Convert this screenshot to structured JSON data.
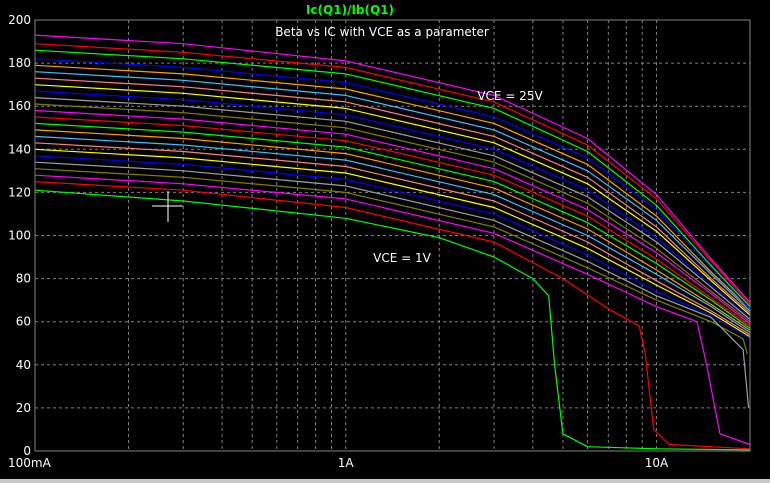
{
  "chart_data": {
    "type": "line",
    "trace_label": "Ic(Q1)/Ib(Q1)",
    "annotations": {
      "title": "Beta vs IC with VCE as a parameter",
      "top_curve": "VCE = 25V",
      "bottom_curve": "VCE = 1V"
    },
    "x_scale": "log",
    "xlim": [
      0.1,
      20
    ],
    "ylim": [
      0,
      200
    ],
    "x_ticks": [
      {
        "value": 0.1,
        "label": "100mA"
      },
      {
        "value": 1,
        "label": "1A"
      },
      {
        "value": 10,
        "label": "10A"
      }
    ],
    "y_ticks": [
      0,
      20,
      40,
      60,
      80,
      100,
      120,
      140,
      160,
      180,
      200
    ],
    "grid": true,
    "colors": {
      "background": "#000000",
      "axes": "#808080",
      "grid": "#808080",
      "text": "#ffffff",
      "trace_label": "#00ff00",
      "series_palette": [
        "#00ff00",
        "#ff0000",
        "#ff00ff",
        "#808000",
        "#a0a0a0",
        "#0000ff",
        "#ffff00",
        "#ff8080",
        "#40c0ff",
        "#ffa000"
      ]
    },
    "series": [
      {
        "color": "#00ff00",
        "values": [
          [
            0.1,
            121
          ],
          [
            0.3,
            116
          ],
          [
            1,
            108
          ],
          [
            2,
            99
          ],
          [
            3,
            90
          ],
          [
            4,
            80
          ],
          [
            4.5,
            72
          ],
          [
            4.7,
            40
          ],
          [
            5,
            8
          ],
          [
            6,
            2
          ],
          [
            10,
            1
          ],
          [
            20,
            0.5
          ]
        ]
      },
      {
        "color": "#ff0000",
        "values": [
          [
            0.1,
            125
          ],
          [
            0.3,
            121
          ],
          [
            1,
            113
          ],
          [
            3,
            97
          ],
          [
            5,
            80
          ],
          [
            7,
            66
          ],
          [
            8.8,
            58
          ],
          [
            9.2,
            45
          ],
          [
            9.8,
            10
          ],
          [
            11,
            3
          ],
          [
            20,
            1
          ]
        ]
      },
      {
        "color": "#ff00ff",
        "values": [
          [
            0.1,
            128
          ],
          [
            0.3,
            124
          ],
          [
            1,
            117
          ],
          [
            3,
            101
          ],
          [
            6,
            82
          ],
          [
            10,
            67
          ],
          [
            13.5,
            60
          ],
          [
            14.5,
            40
          ],
          [
            16,
            8
          ],
          [
            20,
            3
          ]
        ]
      },
      {
        "color": "#808000",
        "values": [
          [
            0.1,
            131
          ],
          [
            0.3,
            127
          ],
          [
            1,
            120
          ],
          [
            3,
            104
          ],
          [
            6,
            85
          ],
          [
            10,
            70
          ],
          [
            15,
            60
          ],
          [
            19,
            52
          ],
          [
            19.6,
            45
          ]
        ]
      },
      {
        "color": "#a0a0a0",
        "values": [
          [
            0.1,
            134
          ],
          [
            0.3,
            130
          ],
          [
            1,
            123
          ],
          [
            3,
            107
          ],
          [
            6,
            88
          ],
          [
            10,
            72
          ],
          [
            15,
            62
          ],
          [
            19,
            47
          ],
          [
            19.8,
            20
          ]
        ]
      },
      {
        "color": "#0000ff",
        "values": [
          [
            0.1,
            137
          ],
          [
            0.3,
            133
          ],
          [
            1,
            126
          ],
          [
            3,
            110
          ],
          [
            6,
            91
          ],
          [
            10,
            74
          ],
          [
            15,
            63
          ],
          [
            20,
            52
          ]
        ]
      },
      {
        "color": "#ffff00",
        "values": [
          [
            0.1,
            140
          ],
          [
            0.3,
            136
          ],
          [
            1,
            129
          ],
          [
            3,
            113
          ],
          [
            6,
            94
          ],
          [
            10,
            77
          ],
          [
            15,
            64
          ],
          [
            20,
            53
          ]
        ]
      },
      {
        "color": "#ff8080",
        "values": [
          [
            0.1,
            143
          ],
          [
            0.3,
            139
          ],
          [
            1,
            132
          ],
          [
            3,
            116
          ],
          [
            6,
            97
          ],
          [
            10,
            79
          ],
          [
            15,
            65
          ],
          [
            20,
            54
          ]
        ]
      },
      {
        "color": "#40c0ff",
        "values": [
          [
            0.1,
            146
          ],
          [
            0.3,
            142
          ],
          [
            1,
            135
          ],
          [
            3,
            119
          ],
          [
            6,
            100
          ],
          [
            10,
            82
          ],
          [
            15,
            67
          ],
          [
            20,
            55
          ]
        ]
      },
      {
        "color": "#ffa000",
        "values": [
          [
            0.1,
            149
          ],
          [
            0.3,
            145
          ],
          [
            1,
            138
          ],
          [
            3,
            122
          ],
          [
            6,
            103
          ],
          [
            10,
            84
          ],
          [
            15,
            68
          ],
          [
            20,
            56
          ]
        ]
      },
      {
        "color": "#00ff00",
        "values": [
          [
            0.1,
            152
          ],
          [
            0.3,
            148
          ],
          [
            1,
            141
          ],
          [
            3,
            125
          ],
          [
            6,
            106
          ],
          [
            10,
            87
          ],
          [
            15,
            70
          ],
          [
            20,
            57
          ]
        ]
      },
      {
        "color": "#ff0000",
        "values": [
          [
            0.1,
            155
          ],
          [
            0.3,
            151
          ],
          [
            1,
            144
          ],
          [
            3,
            128
          ],
          [
            6,
            109
          ],
          [
            10,
            89
          ],
          [
            15,
            71
          ],
          [
            20,
            58
          ]
        ]
      },
      {
        "color": "#ff00ff",
        "values": [
          [
            0.1,
            158
          ],
          [
            0.3,
            154
          ],
          [
            1,
            147
          ],
          [
            3,
            131
          ],
          [
            6,
            112
          ],
          [
            10,
            92
          ],
          [
            15,
            73
          ],
          [
            20,
            59
          ]
        ]
      },
      {
        "color": "#808000",
        "values": [
          [
            0.1,
            161
          ],
          [
            0.3,
            157
          ],
          [
            1,
            150
          ],
          [
            3,
            134
          ],
          [
            6,
            115
          ],
          [
            10,
            94
          ],
          [
            15,
            74
          ],
          [
            20,
            60
          ]
        ]
      },
      {
        "color": "#a0a0a0",
        "values": [
          [
            0.1,
            164
          ],
          [
            0.3,
            160
          ],
          [
            1,
            153
          ],
          [
            3,
            137
          ],
          [
            6,
            118
          ],
          [
            10,
            97
          ],
          [
            15,
            76
          ],
          [
            20,
            61
          ]
        ]
      },
      {
        "color": "#0000ff",
        "values": [
          [
            0.1,
            167
          ],
          [
            0.3,
            163
          ],
          [
            1,
            156
          ],
          [
            3,
            140
          ],
          [
            6,
            121
          ],
          [
            10,
            99
          ],
          [
            15,
            77
          ],
          [
            20,
            62
          ]
        ]
      },
      {
        "color": "#ffff00",
        "values": [
          [
            0.1,
            170
          ],
          [
            0.3,
            166
          ],
          [
            1,
            159
          ],
          [
            3,
            143
          ],
          [
            6,
            124
          ],
          [
            10,
            102
          ],
          [
            15,
            79
          ],
          [
            20,
            63
          ]
        ]
      },
      {
        "color": "#ff8080",
        "values": [
          [
            0.1,
            173
          ],
          [
            0.3,
            169
          ],
          [
            1,
            162
          ],
          [
            3,
            146
          ],
          [
            6,
            127
          ],
          [
            10,
            104
          ],
          [
            15,
            80
          ],
          [
            20,
            64
          ]
        ]
      },
      {
        "color": "#40c0ff",
        "values": [
          [
            0.1,
            176
          ],
          [
            0.3,
            172
          ],
          [
            1,
            165
          ],
          [
            3,
            149
          ],
          [
            6,
            130
          ],
          [
            10,
            107
          ],
          [
            15,
            82
          ],
          [
            20,
            65
          ]
        ]
      },
      {
        "color": "#ffa000",
        "values": [
          [
            0.1,
            179
          ],
          [
            0.3,
            175
          ],
          [
            1,
            168
          ],
          [
            3,
            152
          ],
          [
            6,
            133
          ],
          [
            10,
            109
          ],
          [
            15,
            83
          ],
          [
            20,
            66
          ]
        ]
      },
      {
        "color": "#0000ff",
        "values": [
          [
            0.1,
            182
          ],
          [
            0.3,
            178
          ],
          [
            1,
            171
          ],
          [
            3,
            155
          ],
          [
            6,
            136
          ],
          [
            10,
            112
          ],
          [
            15,
            85
          ],
          [
            20,
            66
          ]
        ]
      },
      {
        "color": "#00ff00",
        "values": [
          [
            0.1,
            186
          ],
          [
            0.3,
            182
          ],
          [
            1,
            175
          ],
          [
            3,
            159
          ],
          [
            6,
            139
          ],
          [
            10,
            114
          ],
          [
            15,
            86
          ],
          [
            20,
            67
          ]
        ]
      },
      {
        "color": "#ff0000",
        "values": [
          [
            0.1,
            189
          ],
          [
            0.3,
            185
          ],
          [
            1,
            178
          ],
          [
            3,
            162
          ],
          [
            6,
            142
          ],
          [
            10,
            117
          ],
          [
            15,
            88
          ],
          [
            20,
            68
          ]
        ]
      },
      {
        "color": "#ff00ff",
        "values": [
          [
            0.1,
            193
          ],
          [
            0.3,
            189
          ],
          [
            1,
            181
          ],
          [
            3,
            165
          ],
          [
            6,
            145
          ],
          [
            10,
            119
          ],
          [
            15,
            89
          ],
          [
            20,
            69
          ]
        ]
      }
    ]
  }
}
